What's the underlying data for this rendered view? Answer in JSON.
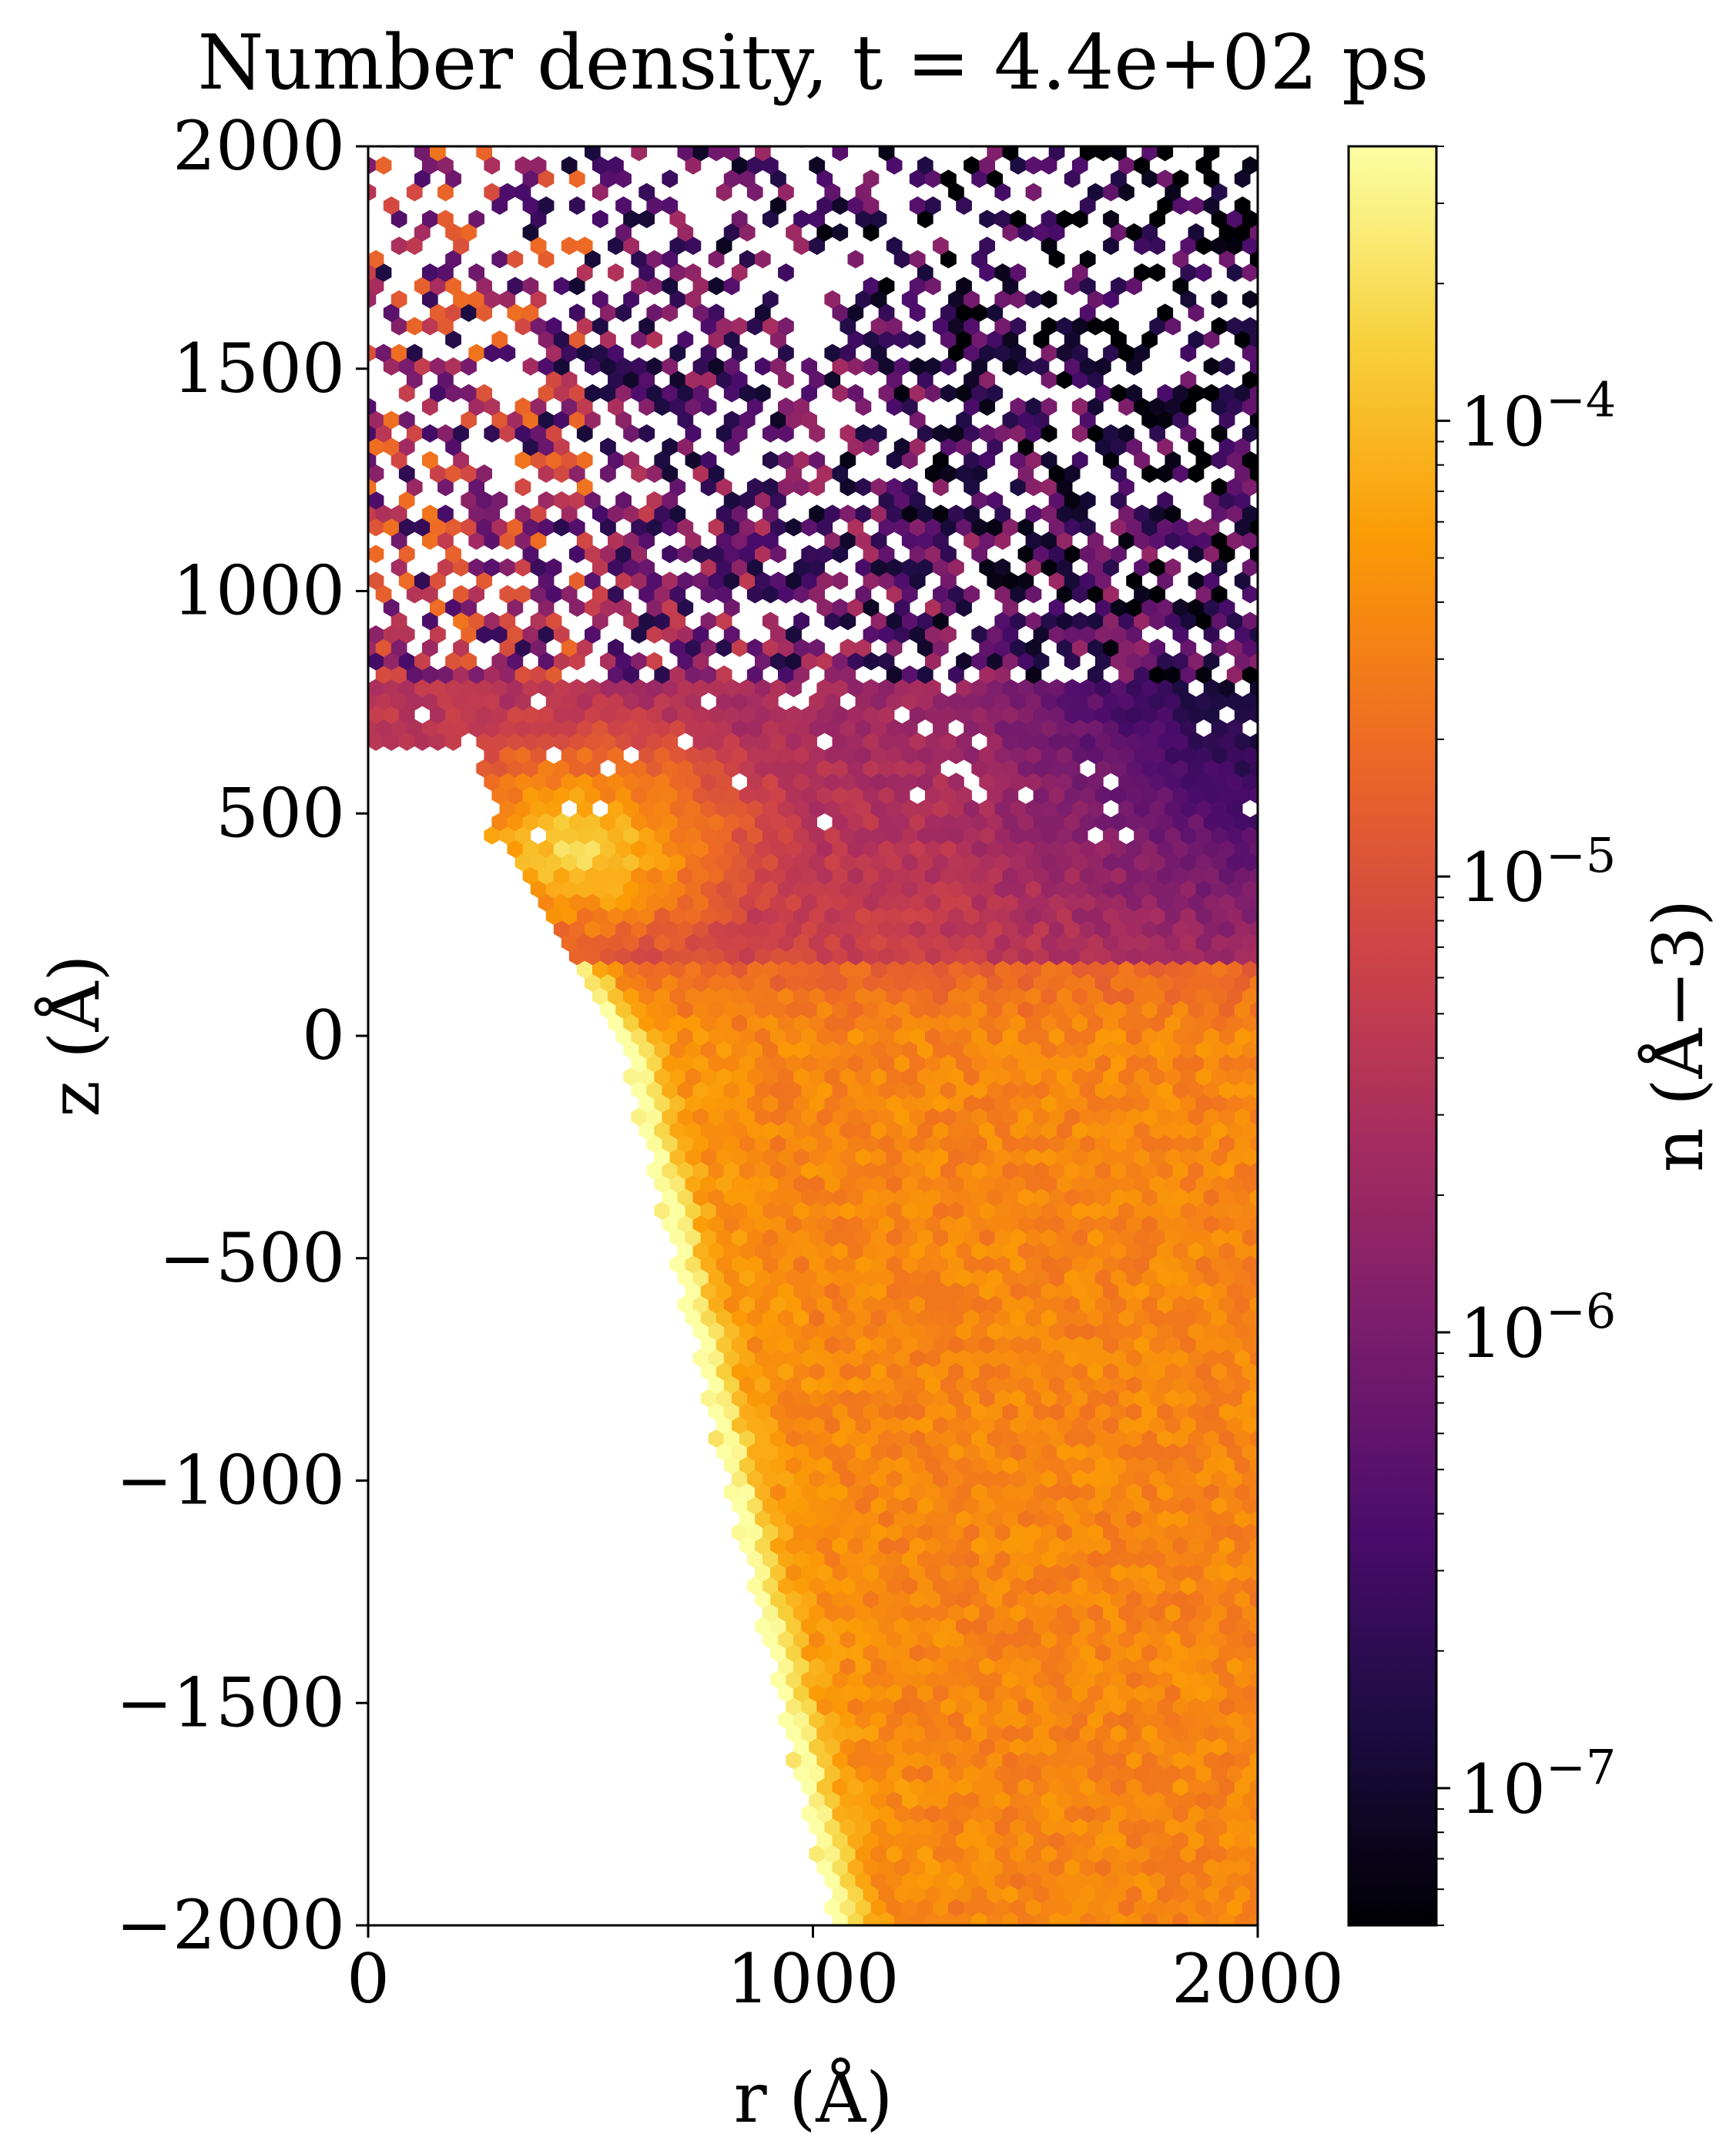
{
  "chart_data": {
    "type": "heatmap",
    "subtype": "hexbin",
    "title": "Number density, t = 4.4e+02 ps",
    "xlabel": "r (Å)",
    "ylabel": "z (Å)",
    "xlim": [
      0,
      2000
    ],
    "ylim": [
      -2000,
      2000
    ],
    "xticks": [
      "0",
      "1000",
      "2000"
    ],
    "yticks": [
      "−2000",
      "−1500",
      "−1000",
      "−500",
      "0",
      "500",
      "1000",
      "1500",
      "2000"
    ],
    "grid": false,
    "colorbar": {
      "label": "n (Å−3)",
      "scale": "log",
      "colormap": "inferno",
      "range": [
        5e-08,
        0.0004
      ],
      "ticks": [
        "10−7",
        "10−6",
        "10−5",
        "10−4"
      ]
    },
    "features": {
      "vacant_region": "left/lower wedge bounded by r≈300 at z≈600 to r≈1050 at z=-2000",
      "peak_ridge": "bright band n≈3e-4 along the wedge boundary from (r≈600,z≈-200) to (r≈1100,z≈-2000)",
      "lobe": "bright lobe n≈2e-4 near r≈450, z≈430",
      "bulk": "n≈1e-5 to 3e-5 in the lower right region",
      "sparse_top": "scattered bins n≈1e-7 to 3e-6 above z≈800"
    },
    "colors": {
      "c0": "#000004",
      "c1": "#1b0c41",
      "c2": "#4a0c6b",
      "c3": "#781c6d",
      "c4": "#a52c60",
      "c5": "#cf4446",
      "c6": "#ed6925",
      "c7": "#fb9b06",
      "c8": "#f7d13d",
      "c9": "#fcffa4"
    }
  }
}
